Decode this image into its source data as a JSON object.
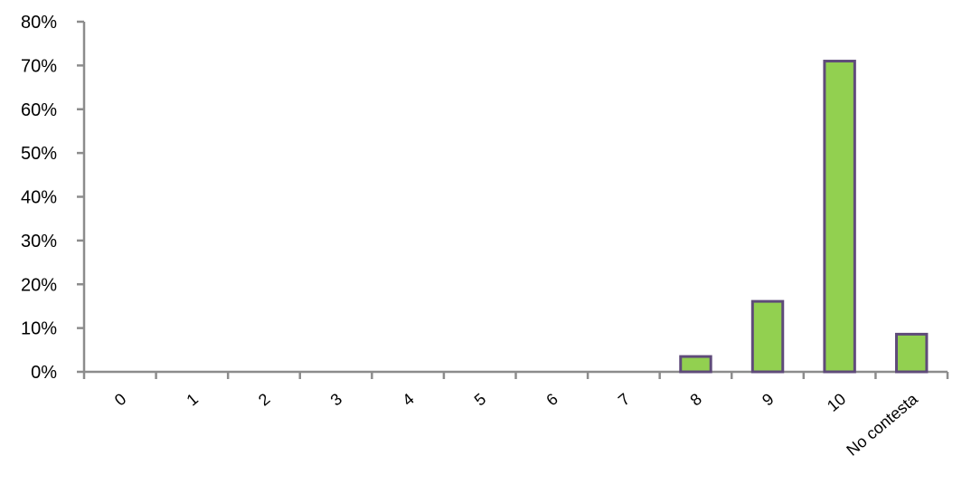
{
  "chart_data": {
    "type": "bar",
    "categories": [
      "0",
      "1",
      "2",
      "3",
      "4",
      "5",
      "6",
      "7",
      "8",
      "9",
      "10",
      "No contesta"
    ],
    "values": [
      0,
      0,
      0,
      0,
      0,
      0,
      0,
      0,
      3.5,
      16.1,
      71.0,
      8.6
    ],
    "y_tick_labels": [
      "0%",
      "10%",
      "20%",
      "30%",
      "40%",
      "50%",
      "60%",
      "70%",
      "80%"
    ],
    "ylim": [
      0,
      80
    ],
    "grid": false,
    "legend": "none",
    "bar_fill_color": "#92d050",
    "bar_border_color": "#5f4b7a",
    "axis_color": "#8c8c8c"
  }
}
